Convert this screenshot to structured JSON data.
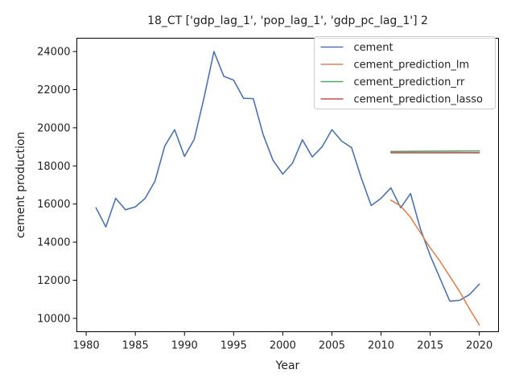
{
  "chart_data": {
    "type": "line",
    "title": "18_CT ['gdp_lag_1', 'pop_lag_1', 'gdp_pc_lag_1'] 2",
    "xlabel": "Year",
    "ylabel": "cement production",
    "xlim": [
      1979.05,
      2021.95
    ],
    "ylim": [
      9300,
      24700
    ],
    "xticks": [
      1980,
      1985,
      1990,
      1995,
      2000,
      2005,
      2010,
      2015,
      2020
    ],
    "yticks": [
      10000,
      12000,
      14000,
      16000,
      18000,
      20000,
      22000,
      24000
    ],
    "legend_position": "top-right",
    "series": [
      {
        "name": "cement",
        "color": "#4c72b0",
        "x": [
          1981,
          1982,
          1983,
          1984,
          1985,
          1986,
          1987,
          1988,
          1989,
          1990,
          1991,
          1992,
          1993,
          1994,
          1995,
          1996,
          1997,
          1998,
          1999,
          2000,
          2001,
          2002,
          2003,
          2004,
          2005,
          2006,
          2007,
          2008,
          2009,
          2010,
          2011,
          2012,
          2013,
          2014,
          2015,
          2016,
          2017,
          2018,
          2019,
          2020
        ],
        "y": [
          15800,
          14800,
          16300,
          15700,
          15850,
          16300,
          17200,
          19050,
          19900,
          18500,
          19400,
          21600,
          24000,
          22700,
          22500,
          21550,
          21530,
          19650,
          18300,
          17570,
          18150,
          19370,
          18470,
          19000,
          19900,
          19300,
          18960,
          17350,
          15920,
          16300,
          16850,
          15800,
          16550,
          14700,
          13300,
          12100,
          10900,
          10950,
          11250,
          11800
        ]
      },
      {
        "name": "cement_prediction_lm",
        "color": "#dd8452",
        "x": [
          2011,
          2012,
          2013,
          2014,
          2015,
          2016,
          2017,
          2018,
          2019,
          2020
        ],
        "y": [
          16200,
          15900,
          15300,
          14500,
          13700,
          13000,
          12200,
          11400,
          10500,
          9650
        ]
      },
      {
        "name": "cement_prediction_rr",
        "color": "#55a868",
        "x": [
          2011,
          2012,
          2013,
          2014,
          2015,
          2016,
          2017,
          2018,
          2019,
          2020
        ],
        "y": [
          18760,
          18762,
          18765,
          18768,
          18770,
          18773,
          18776,
          18779,
          18782,
          18785
        ]
      },
      {
        "name": "cement_prediction_lasso",
        "color": "#c44e52",
        "x": [
          2011,
          2012,
          2013,
          2014,
          2015,
          2016,
          2017,
          2018,
          2019,
          2020
        ],
        "y": [
          18690,
          18690,
          18690,
          18690,
          18690,
          18690,
          18690,
          18690,
          18690,
          18690
        ]
      }
    ]
  }
}
